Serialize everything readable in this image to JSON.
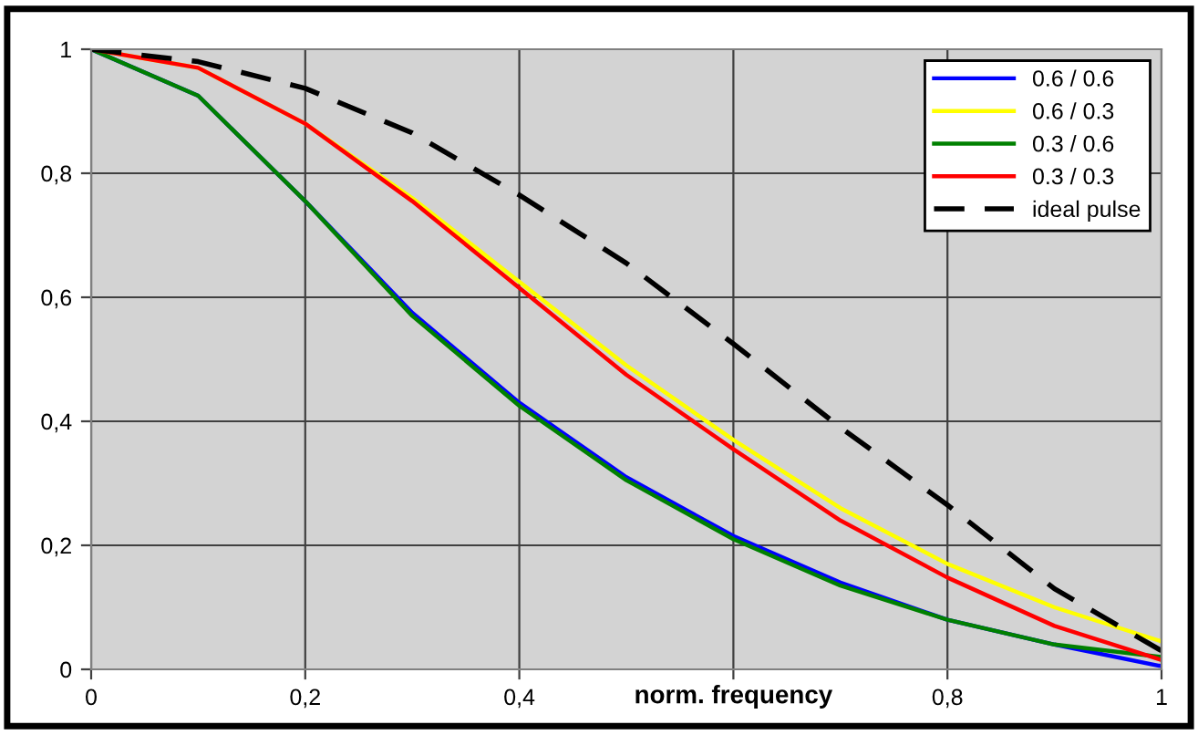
{
  "chart_data": {
    "type": "line",
    "xlabel": "norm. frequency",
    "x": [
      0,
      0.1,
      0.2,
      0.3,
      0.4,
      0.5,
      0.6,
      0.7,
      0.8,
      0.9,
      1
    ],
    "series": [
      {
        "name": "0.6 / 0.6",
        "color": "#0000ff",
        "values": [
          1,
          0.925,
          0.755,
          0.575,
          0.43,
          0.31,
          0.215,
          0.14,
          0.08,
          0.04,
          0.005
        ]
      },
      {
        "name": "0.6 / 0.3",
        "color": "#ffff00",
        "values": [
          1,
          0.97,
          0.88,
          0.76,
          0.625,
          0.49,
          0.37,
          0.26,
          0.17,
          0.1,
          0.045
        ]
      },
      {
        "name": "0.3 / 0.6",
        "color": "#008000",
        "values": [
          1,
          0.925,
          0.755,
          0.57,
          0.425,
          0.305,
          0.21,
          0.135,
          0.08,
          0.04,
          0.02
        ]
      },
      {
        "name": "0.3 / 0.3",
        "color": "#ff0000",
        "values": [
          1,
          0.97,
          0.88,
          0.755,
          0.615,
          0.475,
          0.355,
          0.24,
          0.148,
          0.07,
          0.015
        ]
      },
      {
        "name": "ideal pulse",
        "color": "#000000",
        "line_style": "dashed",
        "values": [
          1,
          0.98,
          0.937,
          0.865,
          0.765,
          0.655,
          0.525,
          0.39,
          0.265,
          0.13,
          0.03
        ]
      }
    ],
    "xlim": [
      0,
      1
    ],
    "ylim": [
      0,
      1
    ],
    "xticks": [
      0,
      {
        "value": 0.2,
        "label": "0,2"
      },
      {
        "value": 0.4,
        "label": "0,4"
      },
      {
        "value": 0.6,
        "label": null
      },
      {
        "value": 0.8,
        "label": "0,8"
      },
      1
    ],
    "yticks": [
      0,
      {
        "value": 0.2,
        "label": "0,2"
      },
      {
        "value": 0.4,
        "label": "0,4"
      },
      {
        "value": 0.6,
        "label": "0,6"
      },
      {
        "value": 0.8,
        "label": "0,8"
      },
      1
    ],
    "grid": true,
    "legend": "top right",
    "line_style": "solid",
    "marker": "none"
  }
}
